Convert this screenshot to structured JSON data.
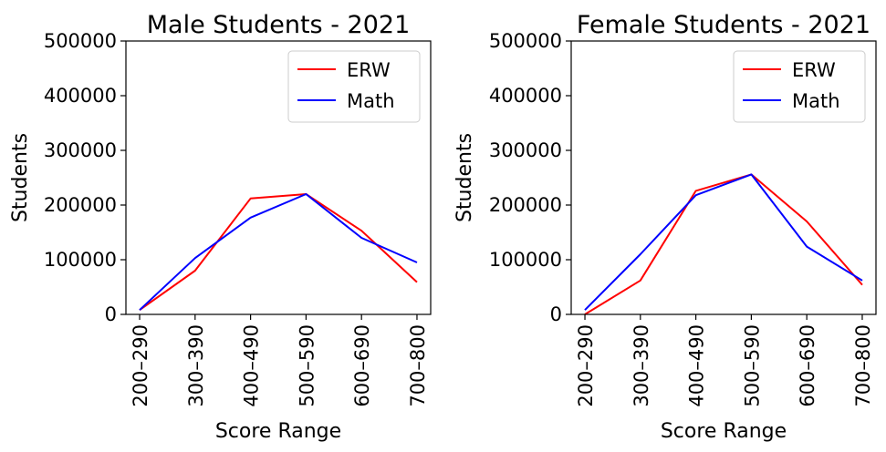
{
  "chart_data": [
    {
      "type": "line",
      "title": "Male Students - 2021",
      "xlabel": "Score Range",
      "ylabel": "Students",
      "categories": [
        "200–290",
        "300–390",
        "400–490",
        "500–590",
        "600–690",
        "700–800"
      ],
      "ylim": [
        0,
        500000
      ],
      "yticks": [
        0,
        100000,
        200000,
        300000,
        400000,
        500000
      ],
      "ytick_labels": [
        "0",
        "100000",
        "200000",
        "300000",
        "400000",
        "500000"
      ],
      "legend": "top-right",
      "grid": false,
      "series": [
        {
          "name": "ERW",
          "color": "#ff0000",
          "values": [
            8000,
            80000,
            212000,
            220000,
            153000,
            59000
          ]
        },
        {
          "name": "Math",
          "color": "#0000ff",
          "values": [
            8000,
            103000,
            177000,
            220000,
            140000,
            95000
          ]
        }
      ]
    },
    {
      "type": "line",
      "title": "Female Students - 2021",
      "xlabel": "Score Range",
      "ylabel": "Students",
      "categories": [
        "200–290",
        "300–390",
        "400–490",
        "500–590",
        "600–690",
        "700–800"
      ],
      "ylim": [
        0,
        500000
      ],
      "yticks": [
        0,
        100000,
        200000,
        300000,
        400000,
        500000
      ],
      "ytick_labels": [
        "0",
        "100000",
        "200000",
        "300000",
        "400000",
        "500000"
      ],
      "legend": "top-right",
      "grid": false,
      "series": [
        {
          "name": "ERW",
          "color": "#ff0000",
          "values": [
            0,
            62000,
            226000,
            256000,
            170000,
            54000
          ]
        },
        {
          "name": "Math",
          "color": "#0000ff",
          "values": [
            8000,
            110000,
            218000,
            256000,
            124000,
            62000
          ]
        }
      ]
    }
  ]
}
